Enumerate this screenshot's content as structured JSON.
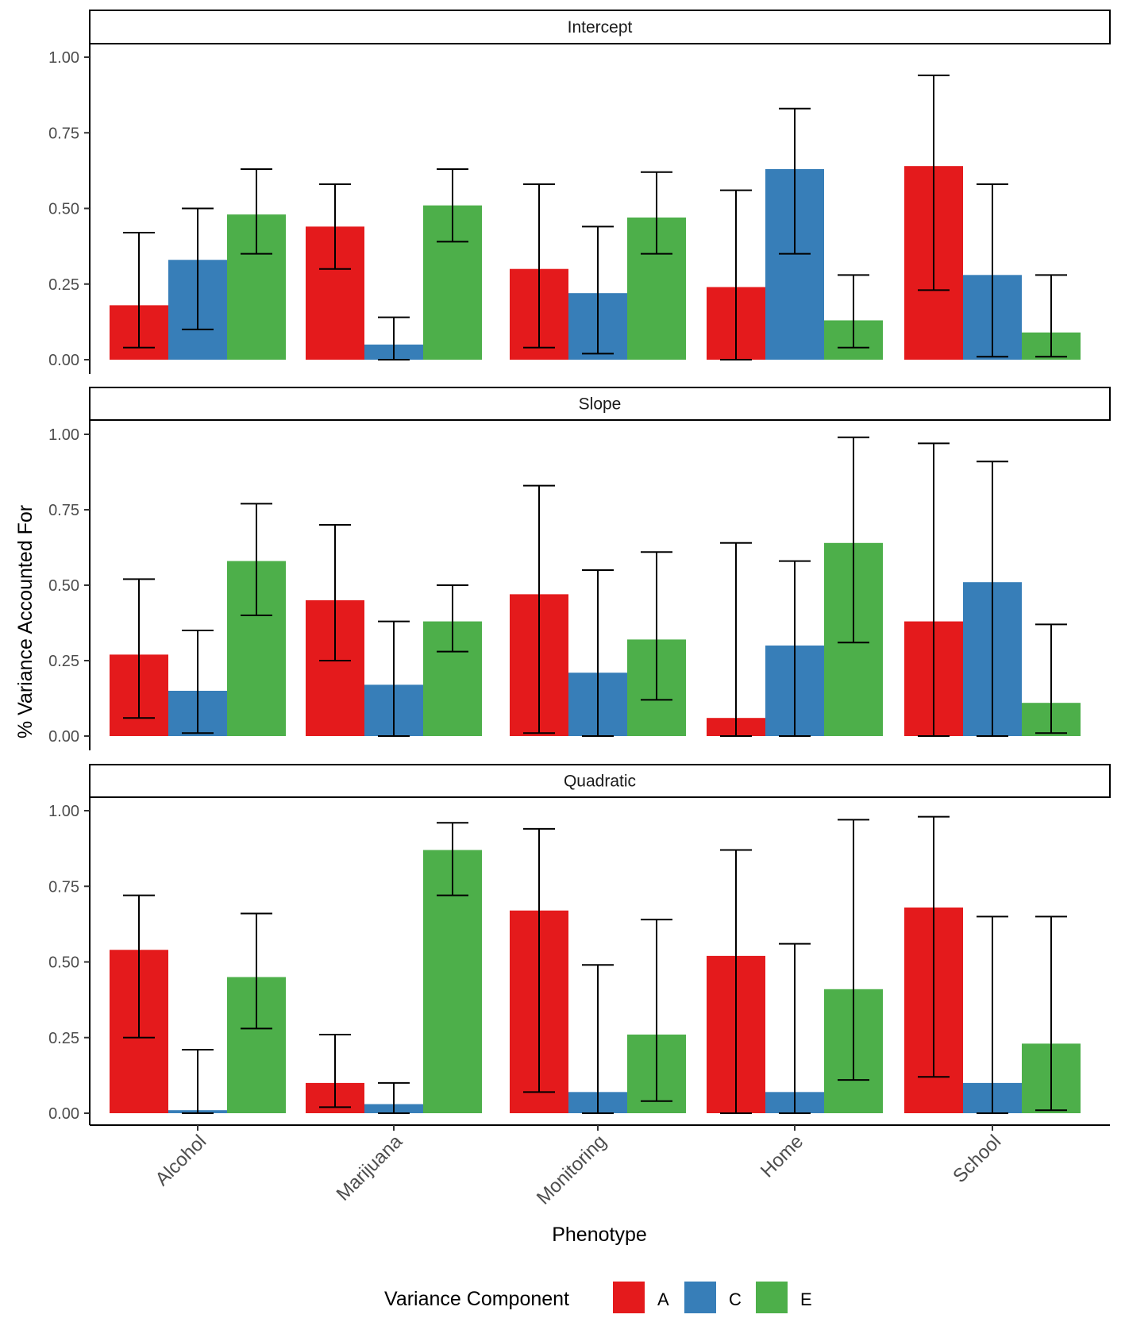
{
  "chart_data": {
    "type": "bar",
    "title": "",
    "xlabel": "Phenotype",
    "ylabel": "% Variance Accounted For",
    "ylim": [
      0,
      1
    ],
    "yticks": [
      "0.00",
      "0.25",
      "0.50",
      "0.75",
      "1.00"
    ],
    "ytick_values": [
      0,
      0.25,
      0.5,
      0.75,
      1
    ],
    "categories": [
      "Alcohol",
      "Marijuana",
      "Monitoring",
      "Home",
      "School"
    ],
    "legend": {
      "title": "Variance Component",
      "position": "bottom",
      "items": [
        {
          "label": "A",
          "color": "#E41A1C"
        },
        {
          "label": "C",
          "color": "#377EB8"
        },
        {
          "label": "E",
          "color": "#4DAF4A"
        }
      ]
    },
    "panels": [
      {
        "label": "Intercept",
        "series": [
          {
            "name": "A",
            "values": [
              0.18,
              0.44,
              0.3,
              0.24,
              0.64
            ],
            "lower": [
              0.04,
              0.3,
              0.04,
              0.0,
              0.23
            ],
            "upper": [
              0.42,
              0.58,
              0.58,
              0.56,
              0.94
            ]
          },
          {
            "name": "C",
            "values": [
              0.33,
              0.05,
              0.22,
              0.63,
              0.28
            ],
            "lower": [
              0.1,
              0.0,
              0.02,
              0.35,
              0.01
            ],
            "upper": [
              0.5,
              0.14,
              0.44,
              0.83,
              0.58
            ]
          },
          {
            "name": "E",
            "values": [
              0.48,
              0.51,
              0.47,
              0.13,
              0.09
            ],
            "lower": [
              0.35,
              0.39,
              0.35,
              0.04,
              0.01
            ],
            "upper": [
              0.63,
              0.63,
              0.62,
              0.28,
              0.28
            ]
          }
        ]
      },
      {
        "label": "Slope",
        "series": [
          {
            "name": "A",
            "values": [
              0.27,
              0.45,
              0.47,
              0.06,
              0.38
            ],
            "lower": [
              0.06,
              0.25,
              0.01,
              0.0,
              0.0
            ],
            "upper": [
              0.52,
              0.7,
              0.83,
              0.64,
              0.97
            ]
          },
          {
            "name": "C",
            "values": [
              0.15,
              0.17,
              0.21,
              0.3,
              0.51
            ],
            "lower": [
              0.01,
              0.0,
              0.0,
              0.0,
              0.0
            ],
            "upper": [
              0.35,
              0.38,
              0.55,
              0.58,
              0.91
            ]
          },
          {
            "name": "E",
            "values": [
              0.58,
              0.38,
              0.32,
              0.64,
              0.11
            ],
            "lower": [
              0.4,
              0.28,
              0.12,
              0.31,
              0.01
            ],
            "upper": [
              0.77,
              0.5,
              0.61,
              0.99,
              0.37
            ]
          }
        ]
      },
      {
        "label": "Quadratic",
        "series": [
          {
            "name": "A",
            "values": [
              0.54,
              0.1,
              0.67,
              0.52,
              0.68
            ],
            "lower": [
              0.25,
              0.02,
              0.07,
              0.0,
              0.12
            ],
            "upper": [
              0.72,
              0.26,
              0.94,
              0.87,
              0.98
            ]
          },
          {
            "name": "C",
            "values": [
              0.01,
              0.03,
              0.07,
              0.07,
              0.1
            ],
            "lower": [
              0.0,
              0.0,
              0.0,
              0.0,
              0.0
            ],
            "upper": [
              0.21,
              0.1,
              0.49,
              0.56,
              0.65
            ]
          },
          {
            "name": "E",
            "values": [
              0.45,
              0.87,
              0.26,
              0.41,
              0.23
            ],
            "lower": [
              0.28,
              0.72,
              0.04,
              0.11,
              0.01
            ],
            "upper": [
              0.66,
              0.96,
              0.64,
              0.97,
              0.65
            ]
          }
        ]
      }
    ]
  }
}
